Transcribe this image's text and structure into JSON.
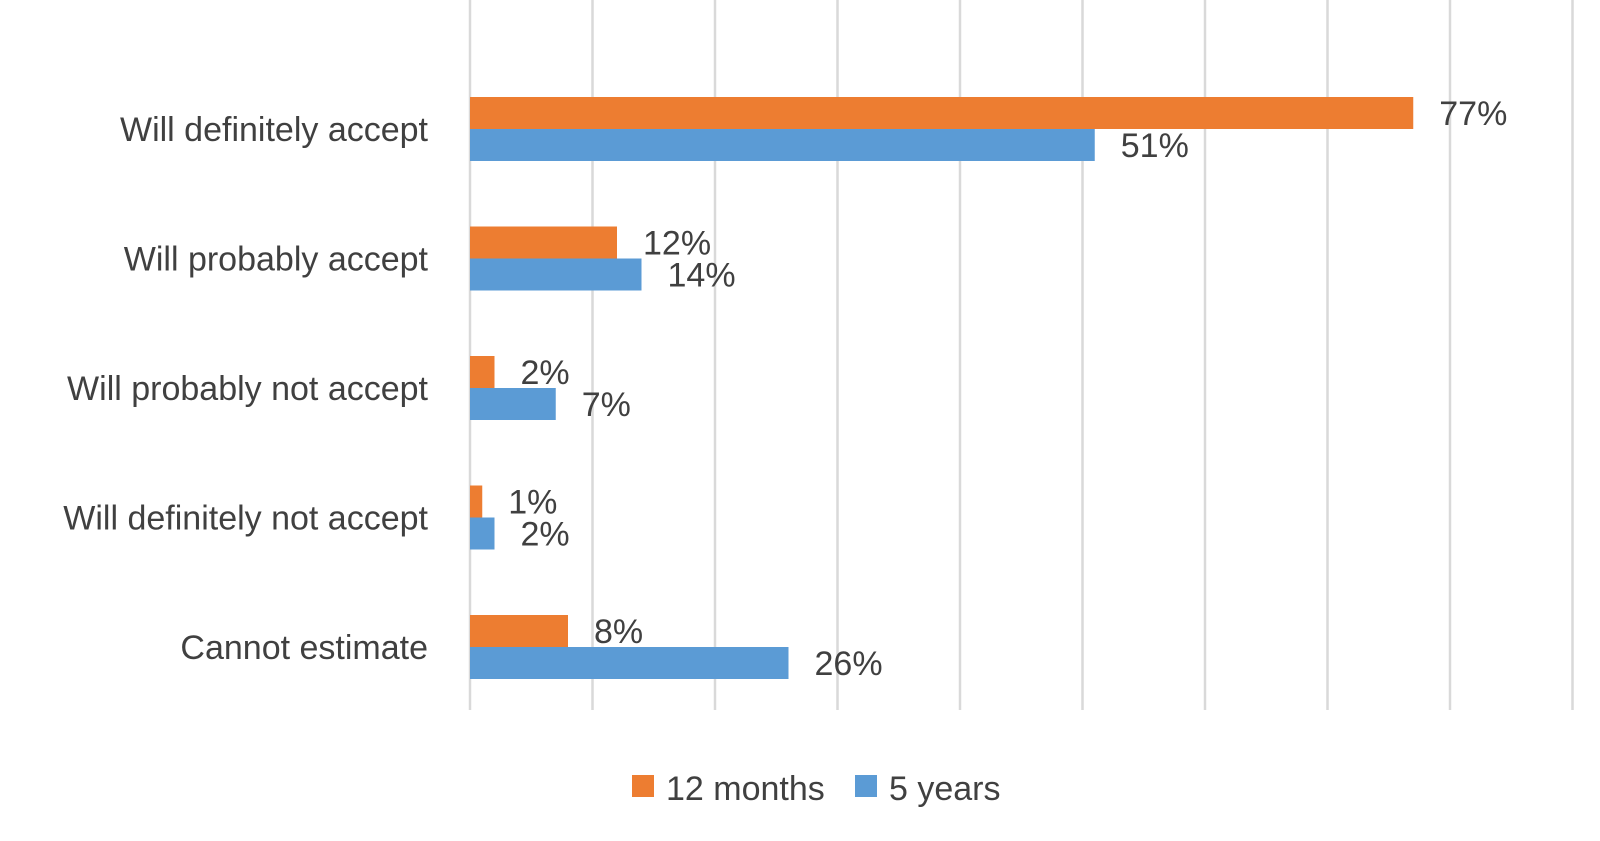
{
  "chart_data": {
    "type": "bar",
    "orientation": "horizontal",
    "categories": [
      "Will definitely accept",
      "Will probably accept",
      "Will probably not accept",
      "Will definitely not accept",
      "Cannot estimate"
    ],
    "series": [
      {
        "name": "12 months",
        "color": "#ED7D31",
        "values": [
          77,
          12,
          2,
          1,
          8
        ],
        "labels": [
          "77%",
          "12%",
          "2%",
          "1%",
          "8%"
        ]
      },
      {
        "name": "5 years",
        "color": "#5B9BD5",
        "values": [
          51,
          14,
          7,
          2,
          26
        ],
        "labels": [
          "51%",
          "14%",
          "7%",
          "2%",
          "26%"
        ]
      }
    ],
    "xlim": [
      0,
      90
    ],
    "x_gridline_step": 10,
    "grid": true,
    "value_unit": "%",
    "legend_position": "bottom"
  }
}
